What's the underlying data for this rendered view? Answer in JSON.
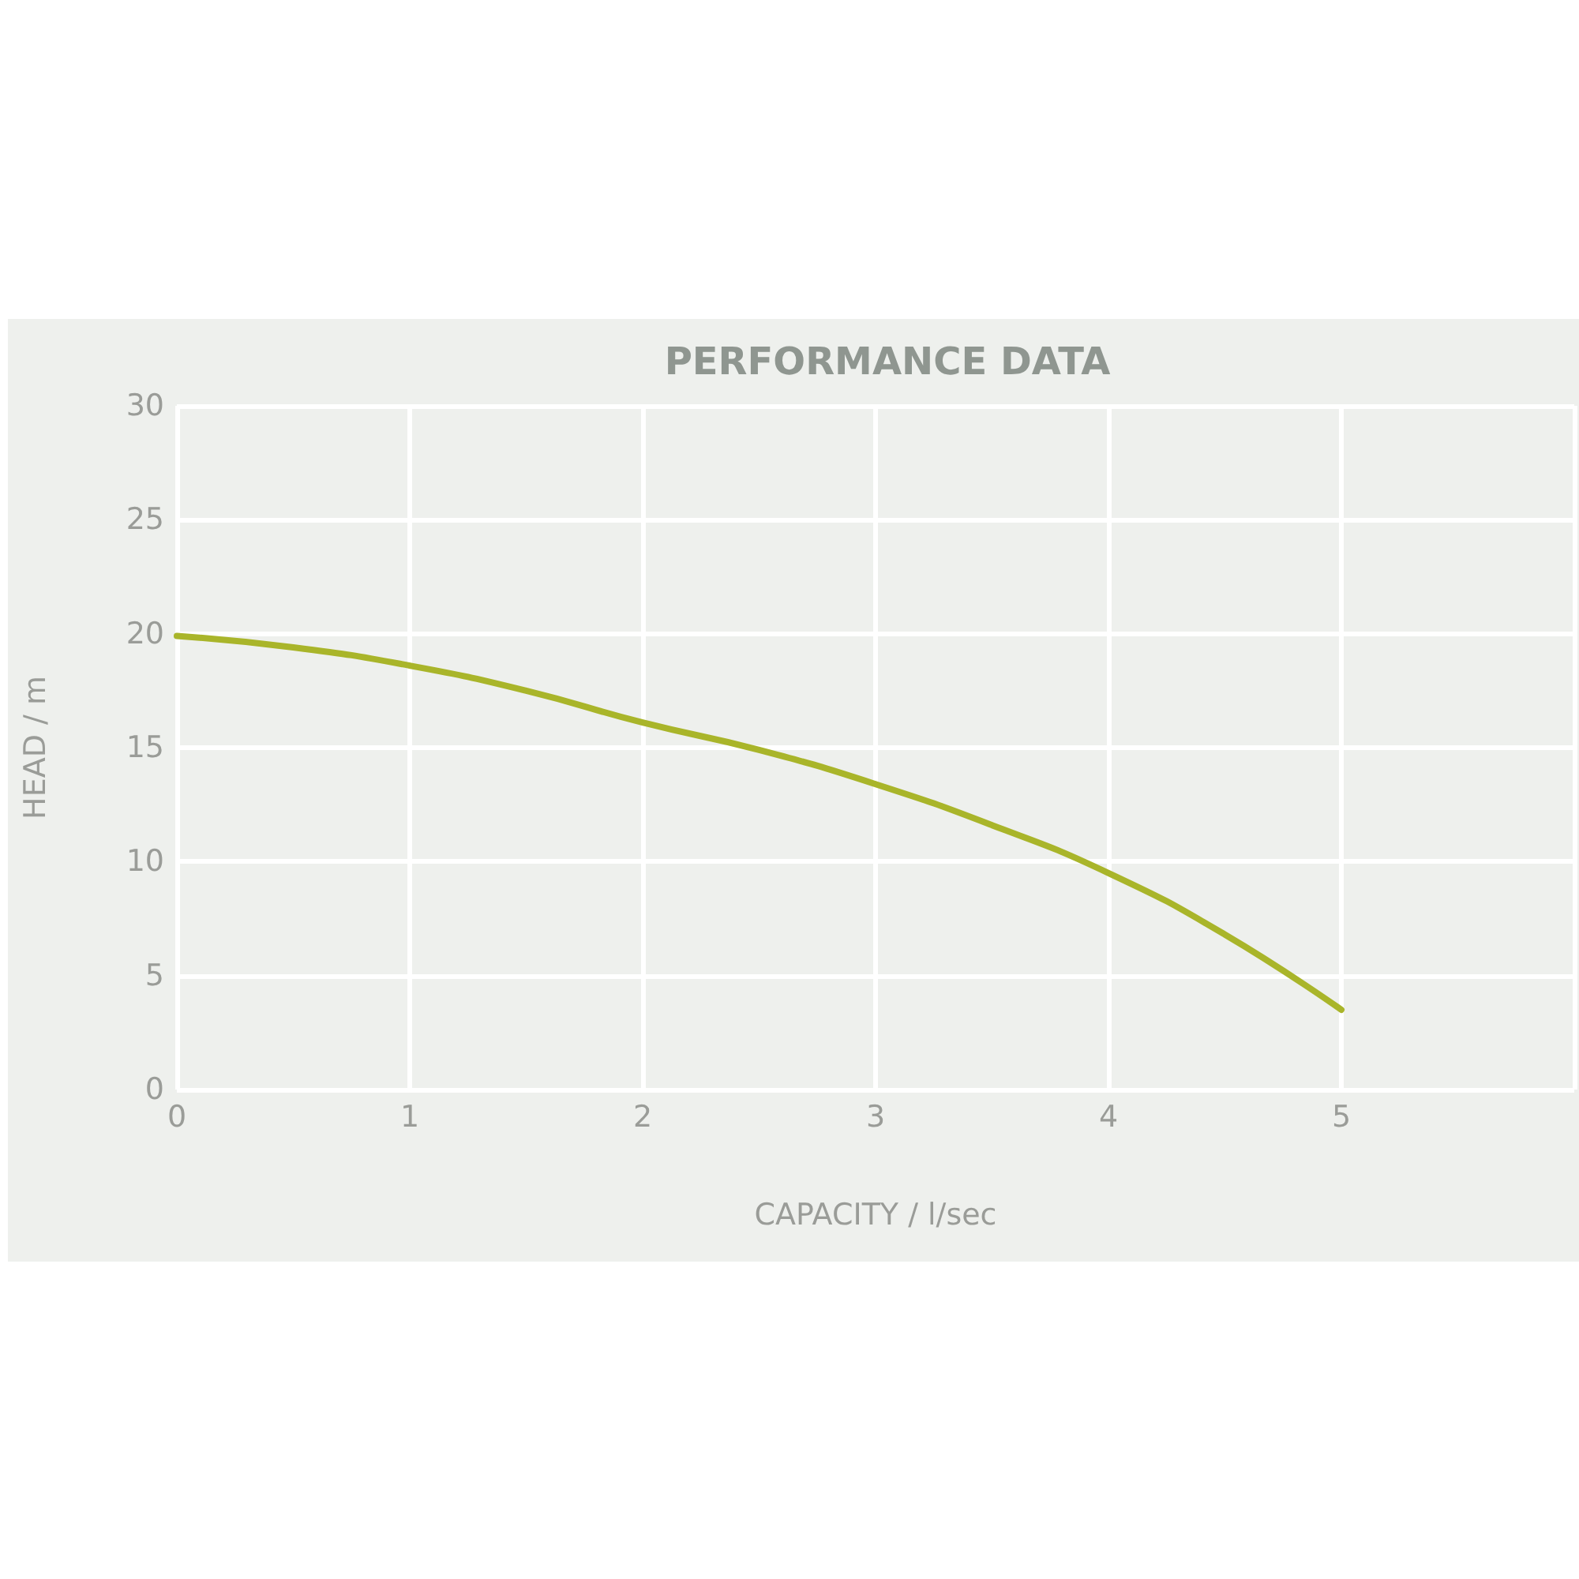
{
  "chart_data": {
    "type": "line",
    "title": "PERFORMANCE DATA",
    "xlabel": "CAPACITY / l/sec",
    "ylabel": "HEAD / m",
    "x": [
      0,
      0.5,
      1,
      1.5,
      2,
      2.5,
      3,
      3.5,
      4,
      4.5,
      5
    ],
    "series": [
      {
        "color": "#a9b52a",
        "values": [
          19.9,
          19.4,
          18.6,
          17.5,
          16.1,
          14.9,
          13.4,
          11.6,
          9.5,
          6.8,
          3.5
        ]
      }
    ],
    "xlim": [
      0,
      6
    ],
    "xticks": [
      0,
      1,
      2,
      3,
      4,
      5,
      {
        "value": 6,
        "label": null
      }
    ],
    "ylim": [
      0,
      30
    ],
    "yticks": [
      0,
      5,
      10,
      15,
      20,
      25,
      30
    ],
    "grid": true,
    "marker": "none",
    "line_style": "solid"
  }
}
